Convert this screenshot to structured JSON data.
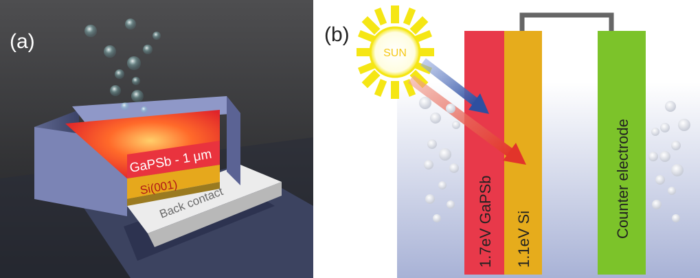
{
  "panel_a": {
    "label": "(a)",
    "layer_top": "GaPSb - 1 μm",
    "layer_mid": "Si(001)",
    "layer_bottom": "Back contact"
  },
  "panel_b": {
    "label": "(b)",
    "sun": "SUN",
    "electrode_1": "1.7eV GaPSb",
    "electrode_2": "1.1eV Si",
    "electrode_3": "Counter electrode"
  },
  "colors": {
    "gapsb": "#e8394a",
    "si": "#e6ac1c",
    "counter": "#7cc32a",
    "sun": "#f5e614",
    "wire": "#666666",
    "arrow_blue": "#2e4fa0",
    "arrow_red": "#e2342a"
  }
}
